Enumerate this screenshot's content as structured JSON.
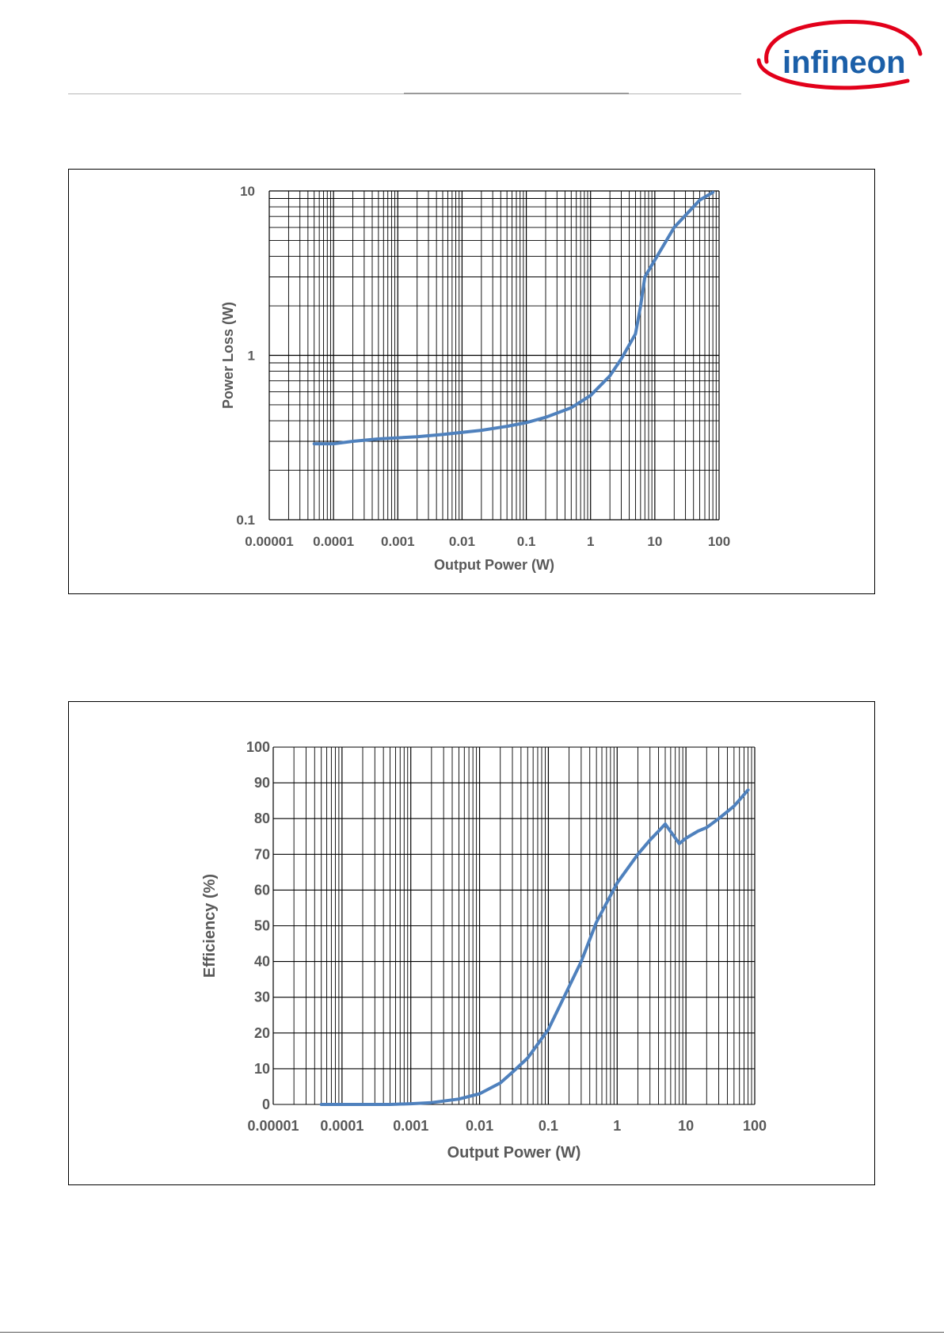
{
  "brand": {
    "name": "infineon",
    "text_color": "#1b5fa8",
    "swoosh_color": "#e2001a"
  },
  "chart_data": [
    {
      "type": "line",
      "xlabel": "Output Power (W)",
      "ylabel": "Power Loss (W)",
      "xscale": "log",
      "yscale": "log",
      "xlim": [
        1e-05,
        100
      ],
      "ylim": [
        0.1,
        10
      ],
      "xticks": [
        "0.00001",
        "0.0001",
        "0.001",
        "0.01",
        "0.1",
        "1",
        "10",
        "100"
      ],
      "yticks": [
        "0.1",
        "1",
        "10"
      ],
      "grid": true,
      "line_color": "#4f81bd",
      "series": [
        {
          "x": [
            5e-05,
            0.0001,
            0.0002,
            0.0005,
            0.001,
            0.002,
            0.005,
            0.01,
            0.02,
            0.05,
            0.1,
            0.2,
            0.5,
            1,
            2,
            3,
            5,
            6,
            7,
            10,
            20,
            50,
            80
          ],
          "y": [
            0.29,
            0.29,
            0.3,
            0.31,
            0.315,
            0.32,
            0.33,
            0.34,
            0.35,
            0.37,
            0.39,
            0.42,
            0.48,
            0.57,
            0.75,
            0.95,
            1.35,
            2.0,
            3.0,
            3.8,
            6.0,
            8.8,
            9.8
          ]
        }
      ]
    },
    {
      "type": "line",
      "xlabel": "Output Power (W)",
      "ylabel": "Efficiency (%)",
      "xscale": "log",
      "yscale": "linear",
      "xlim": [
        1e-05,
        100
      ],
      "ylim": [
        0,
        100
      ],
      "xticks": [
        "0.00001",
        "0.0001",
        "0.001",
        "0.01",
        "0.1",
        "1",
        "10",
        "100"
      ],
      "yticks": [
        "0",
        "10",
        "20",
        "30",
        "40",
        "50",
        "60",
        "70",
        "80",
        "90",
        "100"
      ],
      "grid": true,
      "line_color": "#4f81bd",
      "series": [
        {
          "x": [
            5e-05,
            0.0001,
            0.0005,
            0.001,
            0.002,
            0.005,
            0.01,
            0.02,
            0.03,
            0.05,
            0.1,
            0.2,
            0.3,
            0.5,
            1,
            2,
            3,
            4,
            5,
            8,
            10,
            15,
            20,
            30,
            50,
            80
          ],
          "y": [
            0,
            0,
            0,
            0.2,
            0.5,
            1.5,
            3,
            6,
            9,
            13,
            21,
            33,
            40,
            51,
            62,
            70,
            74,
            76.5,
            78.5,
            73,
            74.5,
            76.5,
            77.5,
            80,
            83.5,
            88
          ]
        }
      ]
    }
  ]
}
